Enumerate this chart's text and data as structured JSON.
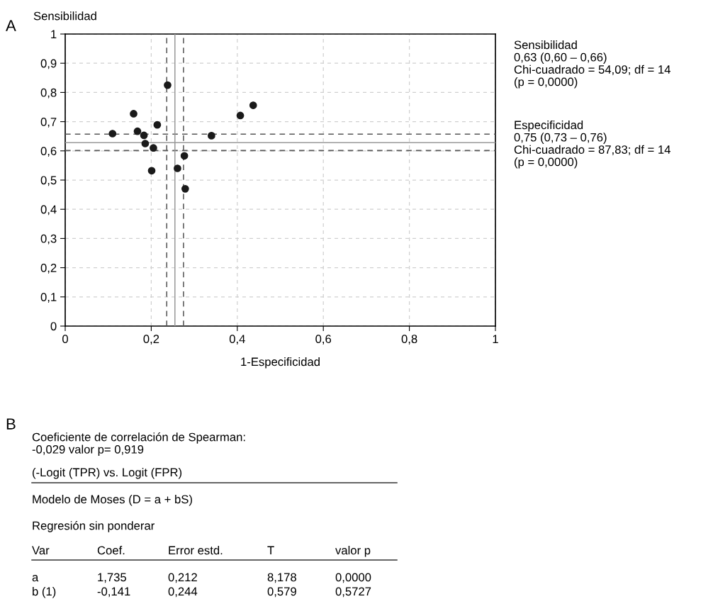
{
  "chart_data": {
    "type": "scatter",
    "xlabel": "1-Especificidad",
    "ylabel": "Sensibilidad",
    "x": [
      0.11,
      0.159,
      0.168,
      0.183,
      0.186,
      0.214,
      0.205,
      0.201,
      0.238,
      0.261,
      0.277,
      0.279,
      0.34,
      0.407,
      0.437
    ],
    "series": [
      {
        "color": "#1a1a1a",
        "values": [
          0.659,
          0.727,
          0.667,
          0.653,
          0.625,
          0.689,
          0.61,
          0.532,
          0.825,
          0.54,
          0.583,
          0.47,
          0.652,
          0.721,
          0.756
        ]
      }
    ],
    "marker": "circle",
    "grid": true,
    "xlim": [
      0,
      1
    ],
    "ylim": [
      0,
      1
    ],
    "xticks": [
      0,
      {
        "value": 0.2,
        "label": "0,2"
      },
      {
        "value": 0.4,
        "label": "0,4"
      },
      {
        "value": 0.6,
        "label": "0,6"
      },
      {
        "value": 0.8,
        "label": "0,8"
      },
      1
    ],
    "yticks": [
      0,
      {
        "value": 0.1,
        "label": "0,1"
      },
      {
        "value": 0.2,
        "label": "0,2"
      },
      {
        "value": 0.3,
        "label": "0,3"
      },
      {
        "value": 0.4,
        "label": "0,4"
      },
      {
        "value": 0.5,
        "label": "0,5"
      },
      {
        "value": 0.6,
        "label": "0,6"
      },
      {
        "value": 0.7,
        "label": "0,7"
      },
      {
        "value": 0.8,
        "label": "0,8"
      },
      {
        "value": 0.9,
        "label": "0,9"
      },
      1
    ],
    "ref_lines": [
      {
        "axis": "y",
        "value": 0.628,
        "color": "#999999",
        "line_style": "solid"
      },
      {
        "axis": "y",
        "value": 0.657,
        "color": "#555555",
        "line_style": "dashed"
      },
      {
        "axis": "y",
        "value": 0.601,
        "color": "#555555",
        "line_style": "dashed"
      },
      {
        "axis": "x",
        "value": 0.255,
        "color": "#999999",
        "line_style": "solid"
      },
      {
        "axis": "x",
        "value": 0.236,
        "color": "#555555",
        "line_style": "dashed"
      },
      {
        "axis": "x",
        "value": 0.275,
        "color": "#555555",
        "line_style": "dashed"
      }
    ],
    "annotations": [
      "A",
      "Sensibilidad\n0,63 (0,60 – 0,66)\nChi-cuadrado = 54,09; df = 14\n(p = 0,0000)",
      "Especificidad\n0,75 (0,73 – 0,76)\nChi-cuadrado = 87,83; df = 14\n(p = 0,0000)",
      "B",
      "Coeficiente de correlación de Spearman:\n-0,029 valor p= 0,919",
      "(-Logit (TPR) vs. Logit (FPR)",
      "Modelo de Moses (D = a + bS)",
      "Regresión sin ponderar",
      "Var",
      "Coef.",
      "Error estd.",
      "T",
      "valor p",
      "a",
      "1,735",
      "0,212",
      "8,178",
      "0,0000",
      "b (1)",
      "-0,141",
      "0,244",
      "0,579",
      "0,5727"
    ]
  }
}
